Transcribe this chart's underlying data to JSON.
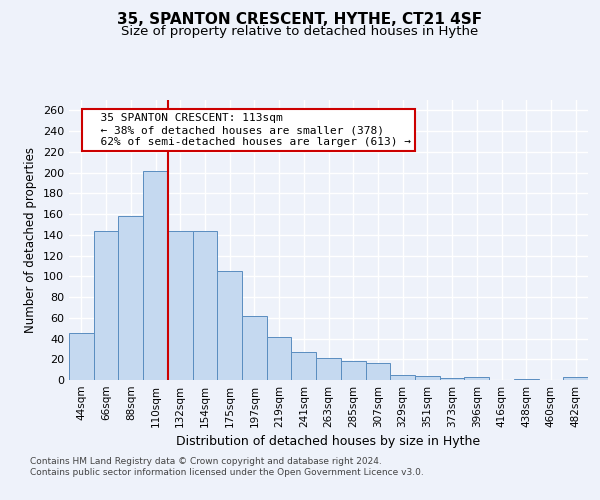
{
  "title1": "35, SPANTON CRESCENT, HYTHE, CT21 4SF",
  "title2": "Size of property relative to detached houses in Hythe",
  "xlabel": "Distribution of detached houses by size in Hythe",
  "ylabel": "Number of detached properties",
  "categories": [
    "44sqm",
    "66sqm",
    "88sqm",
    "110sqm",
    "132sqm",
    "154sqm",
    "175sqm",
    "197sqm",
    "219sqm",
    "241sqm",
    "263sqm",
    "285sqm",
    "307sqm",
    "329sqm",
    "351sqm",
    "373sqm",
    "396sqm",
    "416sqm",
    "438sqm",
    "460sqm",
    "482sqm"
  ],
  "values": [
    45,
    144,
    158,
    202,
    144,
    144,
    105,
    62,
    41,
    27,
    21,
    18,
    16,
    5,
    4,
    2,
    3,
    0,
    1,
    0,
    3
  ],
  "bar_color": "#c5d9f0",
  "bar_edge_color": "#5a8dc0",
  "vline_x": 3.5,
  "vline_color": "#cc0000",
  "annotation_text": "  35 SPANTON CRESCENT: 113sqm\n  ← 38% of detached houses are smaller (378)\n  62% of semi-detached houses are larger (613) →",
  "annotation_box_color": "#ffffff",
  "annotation_box_edge_color": "#cc0000",
  "ylim": [
    0,
    270
  ],
  "yticks": [
    0,
    20,
    40,
    60,
    80,
    100,
    120,
    140,
    160,
    180,
    200,
    220,
    240,
    260
  ],
  "footer_text": "Contains HM Land Registry data © Crown copyright and database right 2024.\nContains public sector information licensed under the Open Government Licence v3.0.",
  "background_color": "#eef2fa",
  "grid_color": "#ffffff",
  "title1_fontsize": 11,
  "title2_fontsize": 9.5
}
